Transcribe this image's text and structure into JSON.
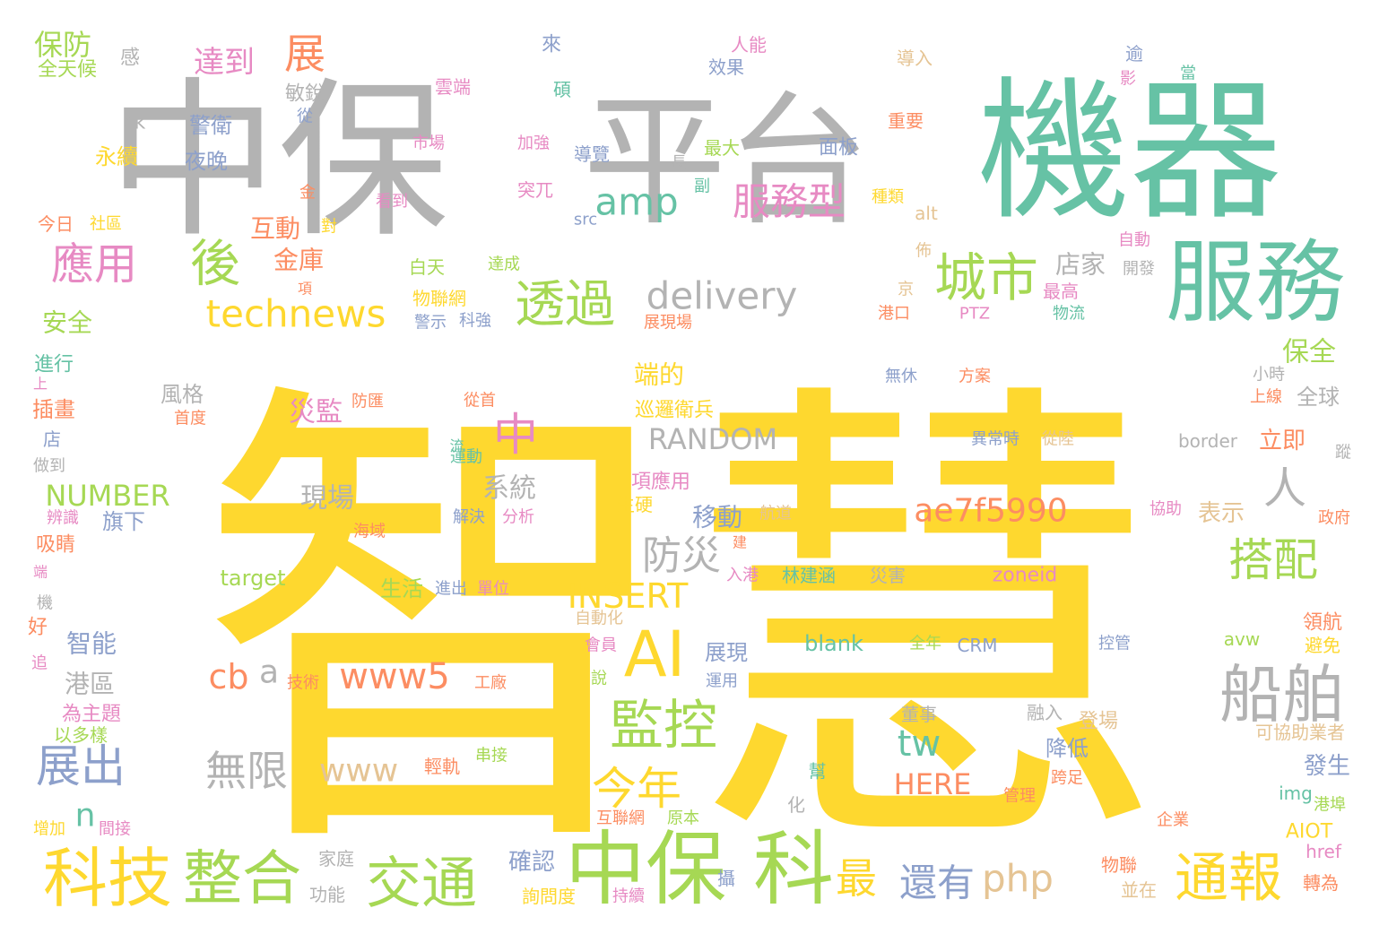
{
  "palette": {
    "gold": "#FED82F",
    "gray": "#B3B3B3",
    "teal": "#66C2A5",
    "green": "#A6D854",
    "orange": "#FC8D62",
    "pink": "#E78AC3",
    "blue": "#8DA0CB",
    "tan": "#E5C494"
  },
  "words": [
    {
      "text": "智慧",
      "color": "gold"
    },
    {
      "text": "中保",
      "color": "gray"
    },
    {
      "text": "平台",
      "color": "gray"
    },
    {
      "text": "機器",
      "color": "teal"
    },
    {
      "text": "服務",
      "color": "teal"
    },
    {
      "text": "中保",
      "color": "green"
    },
    {
      "text": "科",
      "color": "green"
    },
    {
      "text": "科技",
      "color": "gold"
    },
    {
      "text": "整合",
      "color": "green"
    },
    {
      "text": "交通",
      "color": "green"
    },
    {
      "text": "通報",
      "color": "gold"
    },
    {
      "text": "城市",
      "color": "green"
    },
    {
      "text": "透過",
      "color": "green"
    },
    {
      "text": "後",
      "color": "green"
    },
    {
      "text": "應用",
      "color": "pink"
    },
    {
      "text": "technews",
      "color": "gold"
    },
    {
      "text": "delivery",
      "color": "gray"
    },
    {
      "text": "amp",
      "color": "teal"
    },
    {
      "text": "服務型",
      "color": "pink"
    },
    {
      "text": "AI",
      "color": "gold"
    },
    {
      "text": "監控",
      "color": "green"
    },
    {
      "text": "今年",
      "color": "gold"
    },
    {
      "text": "船舶",
      "color": "gray"
    },
    {
      "text": "搭配",
      "color": "green"
    },
    {
      "text": "人",
      "color": "gray"
    },
    {
      "text": "展出",
      "color": "blue"
    },
    {
      "text": "無限",
      "color": "gray"
    },
    {
      "text": "www",
      "color": "tan"
    },
    {
      "text": "www5",
      "color": "orange"
    },
    {
      "text": "cb",
      "color": "orange"
    },
    {
      "text": "a",
      "color": "gray"
    },
    {
      "text": "中",
      "color": "pink"
    },
    {
      "text": "ae7f5990",
      "color": "orange"
    },
    {
      "text": "防災",
      "color": "gray"
    },
    {
      "text": "INSERT",
      "color": "gold"
    },
    {
      "text": "RANDOM",
      "color": "gray"
    },
    {
      "text": "NUMBER",
      "color": "green"
    },
    {
      "text": "最",
      "color": "gold"
    },
    {
      "text": "還有",
      "color": "blue"
    },
    {
      "text": "php",
      "color": "tan"
    },
    {
      "text": "tw",
      "color": "teal"
    },
    {
      "text": "n",
      "color": "teal"
    },
    {
      "text": "展",
      "color": "orange"
    },
    {
      "text": "達到",
      "color": "pink"
    },
    {
      "text": "保防",
      "color": "green"
    },
    {
      "text": "全天候",
      "color": "green"
    },
    {
      "text": "感",
      "color": "gray"
    },
    {
      "text": "來",
      "color": "blue"
    },
    {
      "text": "人能",
      "color": "pink"
    },
    {
      "text": "效果",
      "color": "blue"
    },
    {
      "text": "敏銳",
      "color": "gray"
    },
    {
      "text": "雲端",
      "color": "pink"
    },
    {
      "text": "從",
      "color": "blue"
    },
    {
      "text": "ck",
      "color": "gray"
    },
    {
      "text": "警衛",
      "color": "blue"
    },
    {
      "text": "永續",
      "color": "gold"
    },
    {
      "text": "夜晚",
      "color": "blue"
    },
    {
      "text": "市場",
      "color": "pink"
    },
    {
      "text": "加強",
      "color": "pink"
    },
    {
      "text": "導覽",
      "color": "blue"
    },
    {
      "text": "長",
      "color": "gray"
    },
    {
      "text": "最大",
      "color": "green"
    },
    {
      "text": "面板",
      "color": "blue"
    },
    {
      "text": "導入",
      "color": "tan"
    },
    {
      "text": "逾",
      "color": "blue"
    },
    {
      "text": "影",
      "color": "pink"
    },
    {
      "text": "當",
      "color": "teal"
    },
    {
      "text": "碩",
      "color": "teal"
    },
    {
      "text": "重要",
      "color": "orange"
    },
    {
      "text": "金",
      "color": "orange"
    },
    {
      "text": "看到",
      "color": "pink"
    },
    {
      "text": "突兀",
      "color": "pink"
    },
    {
      "text": "副",
      "color": "teal"
    },
    {
      "text": "種類",
      "color": "gold"
    },
    {
      "text": "alt",
      "color": "tan"
    },
    {
      "text": "src",
      "color": "blue"
    },
    {
      "text": "今日",
      "color": "orange"
    },
    {
      "text": "社區",
      "color": "gold"
    },
    {
      "text": "對",
      "color": "gold"
    },
    {
      "text": "互動",
      "color": "orange"
    },
    {
      "text": "金庫",
      "color": "orange"
    },
    {
      "text": "白天",
      "color": "green"
    },
    {
      "text": "達成",
      "color": "green"
    },
    {
      "text": "店家",
      "color": "gray"
    },
    {
      "text": "自動",
      "color": "pink"
    },
    {
      "text": "開發",
      "color": "gray"
    },
    {
      "text": "佈",
      "color": "tan"
    },
    {
      "text": "項",
      "color": "orange"
    },
    {
      "text": "京",
      "color": "tan"
    },
    {
      "text": "最高",
      "color": "pink"
    },
    {
      "text": "物聯網",
      "color": "gold"
    },
    {
      "text": "安全",
      "color": "green"
    },
    {
      "text": "警示",
      "color": "blue"
    },
    {
      "text": "科強",
      "color": "blue"
    },
    {
      "text": "展現場",
      "color": "orange"
    },
    {
      "text": "港口",
      "color": "orange"
    },
    {
      "text": "PTZ",
      "color": "pink"
    },
    {
      "text": "物流",
      "color": "teal"
    },
    {
      "text": "保全",
      "color": "green"
    },
    {
      "text": "進行",
      "color": "teal"
    },
    {
      "text": "上",
      "color": "pink"
    },
    {
      "text": "風格",
      "color": "gray"
    },
    {
      "text": "防匯",
      "color": "orange"
    },
    {
      "text": "端的",
      "color": "gold"
    },
    {
      "text": "無休",
      "color": "blue"
    },
    {
      "text": "方案",
      "color": "orange"
    },
    {
      "text": "小時",
      "color": "gray"
    },
    {
      "text": "全球",
      "color": "gray"
    },
    {
      "text": "上線",
      "color": "orange"
    },
    {
      "text": "插畫",
      "color": "orange"
    },
    {
      "text": "首度",
      "color": "orange"
    },
    {
      "text": "災監",
      "color": "pink"
    },
    {
      "text": "從首",
      "color": "orange"
    },
    {
      "text": "巡邏衛兵",
      "color": "gold"
    },
    {
      "text": "異常時",
      "color": "blue"
    },
    {
      "text": "從陸",
      "color": "tan"
    },
    {
      "text": "border",
      "color": "gray"
    },
    {
      "text": "立即",
      "color": "orange"
    },
    {
      "text": "蹤",
      "color": "gray"
    },
    {
      "text": "店",
      "color": "blue"
    },
    {
      "text": "流",
      "color": "teal"
    },
    {
      "text": "運動",
      "color": "teal"
    },
    {
      "text": "系統",
      "color": "gray"
    },
    {
      "text": "做到",
      "color": "gray"
    },
    {
      "text": "解決",
      "color": "blue"
    },
    {
      "text": "分析",
      "color": "pink"
    },
    {
      "text": "項應用",
      "color": "pink"
    },
    {
      "text": "現場",
      "color": "gray"
    },
    {
      "text": "生硬",
      "color": "gold"
    },
    {
      "text": "移動",
      "color": "blue"
    },
    {
      "text": "表示",
      "color": "tan"
    },
    {
      "text": "協助",
      "color": "pink"
    },
    {
      "text": "辨識",
      "color": "pink"
    },
    {
      "text": "旗下",
      "color": "blue"
    },
    {
      "text": "海域",
      "color": "orange"
    },
    {
      "text": "航道",
      "color": "tan"
    },
    {
      "text": "政府",
      "color": "orange"
    },
    {
      "text": "吸睛",
      "color": "orange"
    },
    {
      "text": "建",
      "color": "orange"
    },
    {
      "text": "端",
      "color": "pink"
    },
    {
      "text": "target",
      "color": "green"
    },
    {
      "text": "入港",
      "color": "pink"
    },
    {
      "text": "林建涵",
      "color": "teal"
    },
    {
      "text": "災害",
      "color": "gray"
    },
    {
      "text": "zoneid",
      "color": "pink"
    },
    {
      "text": "生活",
      "color": "green"
    },
    {
      "text": "進出",
      "color": "blue"
    },
    {
      "text": "單位",
      "color": "pink"
    },
    {
      "text": "機",
      "color": "gray"
    },
    {
      "text": "自動化",
      "color": "tan"
    },
    {
      "text": "領航",
      "color": "orange"
    },
    {
      "text": "好",
      "color": "orange"
    },
    {
      "text": "智能",
      "color": "blue"
    },
    {
      "text": "會員",
      "color": "pink"
    },
    {
      "text": "blank",
      "color": "teal"
    },
    {
      "text": "全年",
      "color": "green"
    },
    {
      "text": "CRM",
      "color": "blue"
    },
    {
      "text": "控管",
      "color": "blue"
    },
    {
      "text": "avw",
      "color": "green"
    },
    {
      "text": "避免",
      "color": "gold"
    },
    {
      "text": "追",
      "color": "pink"
    },
    {
      "text": "展現",
      "color": "blue"
    },
    {
      "text": "港區",
      "color": "gray"
    },
    {
      "text": "技術",
      "color": "orange"
    },
    {
      "text": "工廠",
      "color": "orange"
    },
    {
      "text": "說",
      "color": "green"
    },
    {
      "text": "運用",
      "color": "blue"
    },
    {
      "text": "為主題",
      "color": "pink"
    },
    {
      "text": "融入",
      "color": "gray"
    },
    {
      "text": "董事",
      "color": "gray"
    },
    {
      "text": "登場",
      "color": "tan"
    },
    {
      "text": "可協助業者",
      "color": "tan"
    },
    {
      "text": "以多樣",
      "color": "green"
    },
    {
      "text": "串接",
      "color": "green"
    },
    {
      "text": "降低",
      "color": "blue"
    },
    {
      "text": "輕軌",
      "color": "orange"
    },
    {
      "text": "幫",
      "color": "teal"
    },
    {
      "text": "跨足",
      "color": "orange"
    },
    {
      "text": "發生",
      "color": "blue"
    },
    {
      "text": "HERE",
      "color": "orange"
    },
    {
      "text": "管理",
      "color": "orange"
    },
    {
      "text": "img",
      "color": "teal"
    },
    {
      "text": "港埠",
      "color": "green"
    },
    {
      "text": "增加",
      "color": "gold"
    },
    {
      "text": "間接",
      "color": "pink"
    },
    {
      "text": "化",
      "color": "gray"
    },
    {
      "text": "互聯網",
      "color": "orange"
    },
    {
      "text": "原本",
      "color": "green"
    },
    {
      "text": "企業",
      "color": "orange"
    },
    {
      "text": "AIOT",
      "color": "gold"
    },
    {
      "text": "href",
      "color": "pink"
    },
    {
      "text": "家庭",
      "color": "gray"
    },
    {
      "text": "確認",
      "color": "blue"
    },
    {
      "text": "物聯",
      "color": "orange"
    },
    {
      "text": "轉為",
      "color": "orange"
    },
    {
      "text": "功能",
      "color": "gray"
    },
    {
      "text": "詢問度",
      "color": "gold"
    },
    {
      "text": "持續",
      "color": "pink"
    },
    {
      "text": "攝",
      "color": "blue"
    },
    {
      "text": "並在",
      "color": "tan"
    }
  ]
}
